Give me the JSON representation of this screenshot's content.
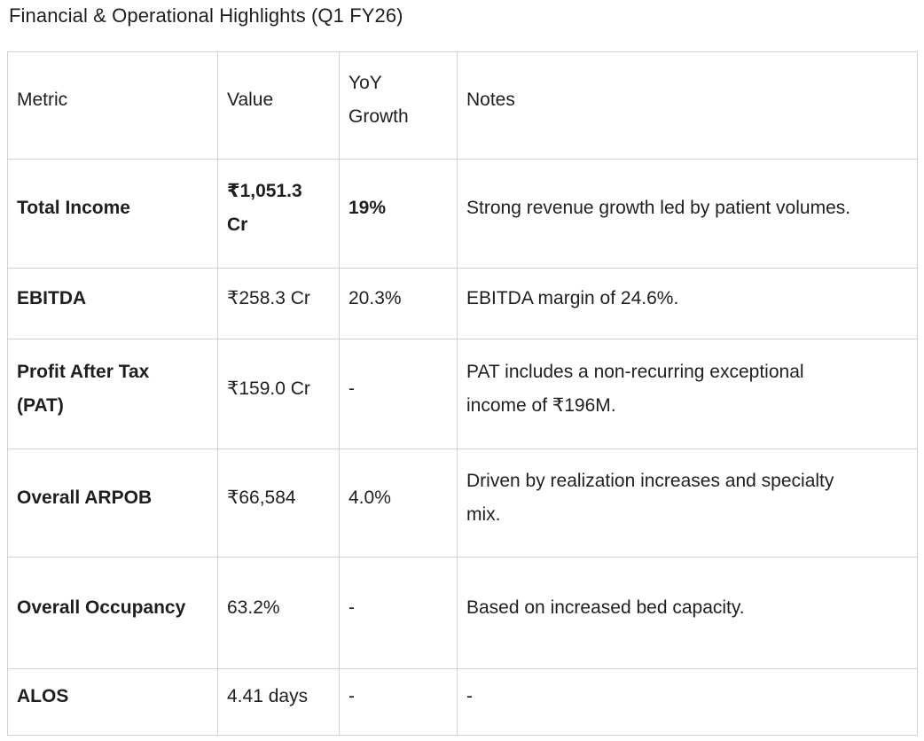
{
  "title": "Financial & Operational Highlights (Q1 FY26)",
  "table": {
    "headers": [
      "Metric",
      "Value",
      "YoY Growth",
      "Notes"
    ],
    "rows": [
      {
        "metric": "Total Income",
        "value": "₹1,051.3 Cr",
        "yoy": "19%",
        "notes": "Strong revenue growth led by patient volumes."
      },
      {
        "metric": "EBITDA",
        "value": "₹258.3 Cr",
        "yoy": "20.3%",
        "notes": "EBITDA margin of 24.6%."
      },
      {
        "metric": "Profit After Tax (PAT)",
        "value": "₹159.0 Cr",
        "yoy": "-",
        "notes": "PAT includes a non-recurring exceptional income of ₹196M."
      },
      {
        "metric": "Overall ARPOB",
        "value": "₹66,584",
        "yoy": "4.0%",
        "notes": "Driven by realization increases and specialty mix."
      },
      {
        "metric": "Overall Occupancy",
        "value": "63.2%",
        "yoy": "-",
        "notes": "Based on increased bed capacity."
      },
      {
        "metric": "ALOS",
        "value": "4.41 days",
        "yoy": "-",
        "notes": "-"
      }
    ]
  },
  "colors": {
    "text": "#1f1f1f",
    "border": "#ced2d9",
    "background": "#ffffff"
  }
}
